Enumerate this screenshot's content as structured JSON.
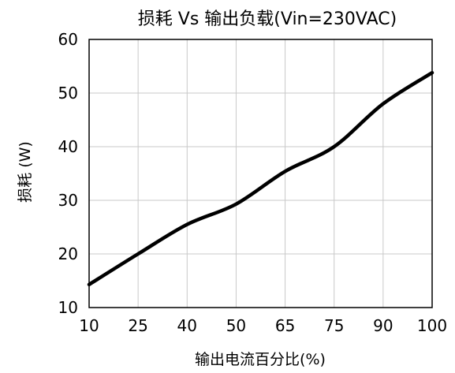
{
  "chart_data": {
    "type": "line",
    "title": "损耗 Vs 输出负载(Vin=230VAC)",
    "xlabel": "输出电流百分比(%)",
    "ylabel": "损耗 (W)",
    "x_ticks": [
      10,
      25,
      40,
      50,
      65,
      75,
      90,
      100
    ],
    "y_ticks": [
      10,
      20,
      30,
      40,
      50,
      60
    ],
    "ylim": [
      10,
      60
    ],
    "grid": true,
    "series": [
      {
        "color": "#000000",
        "x": [
          10,
          25,
          40,
          50,
          65,
          75,
          90,
          100
        ],
        "y": [
          14.3,
          20.0,
          25.5,
          29.3,
          35.4,
          40.0,
          48.0,
          53.8
        ]
      }
    ]
  }
}
